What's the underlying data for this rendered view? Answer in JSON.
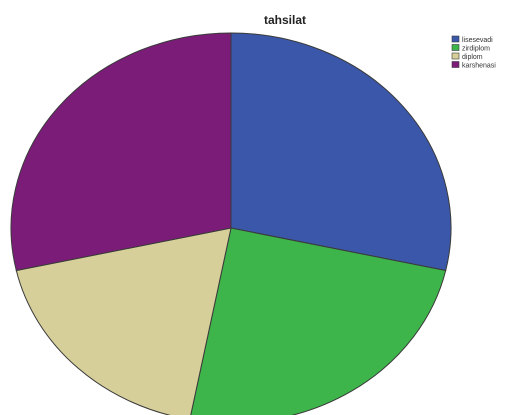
{
  "chart_data": {
    "type": "pie",
    "title": "tahsilat",
    "legend_position": "top-right",
    "start_angle_deg": 0,
    "direction": "clockwise",
    "categories": [
      "lisesevadi",
      "zirdiplom",
      "diplom",
      "karshenasi"
    ],
    "values": [
      28.5,
      24.5,
      18.5,
      28.5
    ],
    "colors": [
      "#3b57aa",
      "#3db54a",
      "#d6cf9a",
      "#7b1d78"
    ]
  }
}
